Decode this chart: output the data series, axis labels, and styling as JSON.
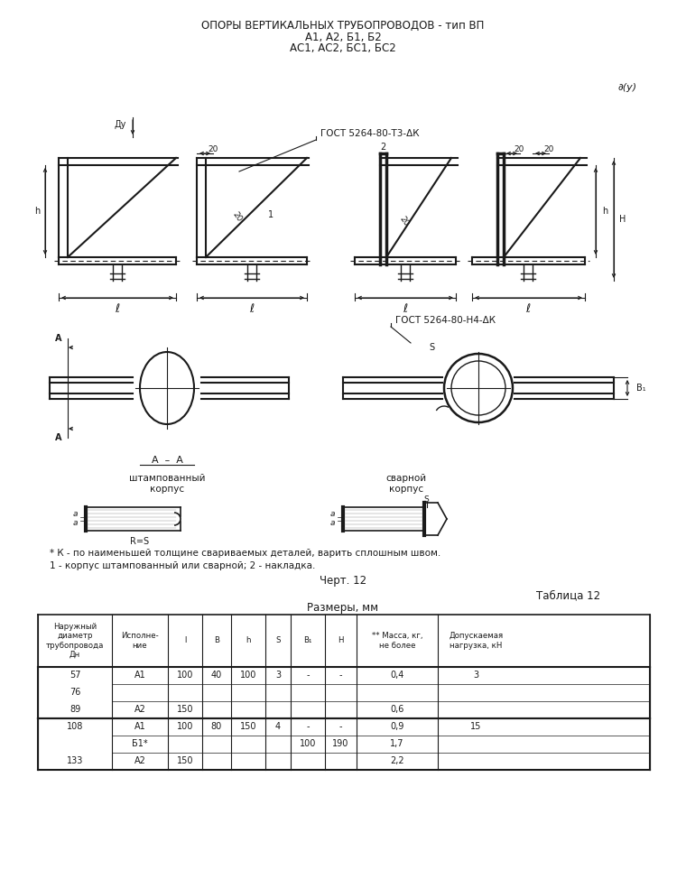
{
  "title_line1": "ОПОРЫ ВЕРТИКАЛЬНЫХ ТРУБОПРОВОДОВ - тип ВП",
  "title_line2": "А1, А2, Б1, Б2",
  "title_line3": "АС1, АС2, БС1, БС2",
  "note1": "* К - по наименьшей толщине свариваемых деталей, варить сплошным швом.",
  "note2": "1 - корпус штампованный или сварной; 2 - накладка.",
  "chert": "Черт. 12",
  "tablica": "Таблица 12",
  "razm": "Размеры, мм",
  "gost_t3": "ГОСТ 5264-80-Т3-ΔК",
  "gost_h4": "ГОСТ 5264-80-Н4-ΔК",
  "bg_color": "#ffffff",
  "line_color": "#1a1a1a",
  "table_header": [
    "Наружный\nдиаметр\nтрубопровода\nДн",
    "Исполне-\nние",
    "l",
    "B",
    "h",
    "S",
    "B₁",
    "H",
    "** Масса, кг,\nне более",
    "Допускаемая\nнагрузка, кН"
  ],
  "table_rows": [
    [
      "57",
      "А1",
      "100",
      "40",
      "100",
      "3",
      "-",
      "-",
      "0,4",
      "3"
    ],
    [
      "76",
      "",
      "",
      "",
      "",
      "",
      "",
      "",
      "",
      ""
    ],
    [
      "89",
      "А2",
      "150",
      "",
      "",
      "",
      "",
      "",
      "0,6",
      ""
    ],
    [
      "108",
      "А1",
      "100",
      "80",
      "150",
      "4",
      "-",
      "-",
      "0,9",
      "15"
    ],
    [
      "",
      "Б1*",
      "",
      "",
      "",
      "",
      "100",
      "190",
      "1,7",
      ""
    ],
    [
      "133",
      "А2",
      "150",
      "",
      "",
      "",
      "",
      "",
      "2,2",
      ""
    ]
  ]
}
